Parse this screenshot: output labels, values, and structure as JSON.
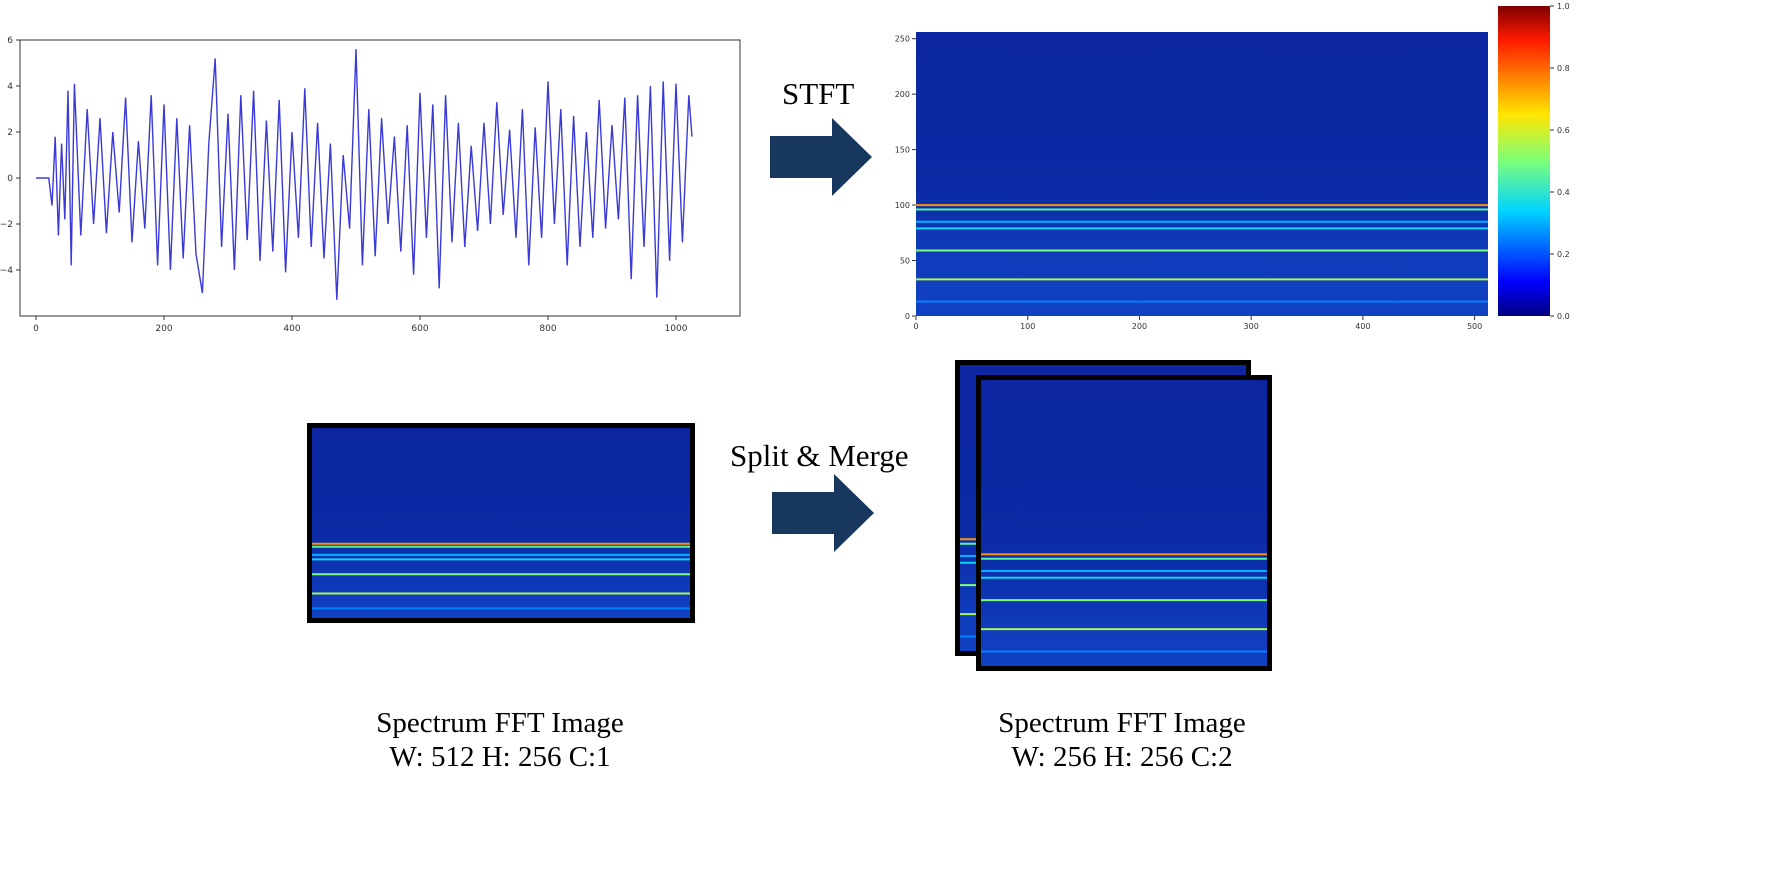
{
  "steps": {
    "stft_label": "STFT",
    "split_label": "Split & Merge"
  },
  "captions": {
    "left": {
      "title": "Spectrum FFT Image",
      "dims": "W: 512 H: 256 C:1"
    },
    "right": {
      "title": "Spectrum FFT Image",
      "dims": "W: 256 H: 256 C:2"
    }
  },
  "colors": {
    "signal": "#3a3ad8",
    "arrow": "#17375e",
    "spectrum_bg": "#0b2aa0",
    "frame": "#000000"
  },
  "chart_data": [
    {
      "type": "line",
      "title": "",
      "xlabel": "",
      "ylabel": "",
      "xlim": [
        -25,
        1100
      ],
      "ylim": [
        -6,
        6
      ],
      "x_ticks": [
        "0",
        "200",
        "400",
        "600",
        "800",
        "1000"
      ],
      "y_ticks": [
        "6",
        "4",
        "2",
        "0",
        "−2",
        "−4"
      ],
      "series": [
        {
          "x": [
            0,
            20,
            25,
            30,
            35,
            40,
            45,
            50,
            55,
            60,
            70,
            80,
            90,
            100,
            110,
            120,
            130,
            140,
            150,
            160,
            170,
            180,
            190,
            200,
            210,
            220,
            230,
            240,
            250,
            260,
            270,
            280,
            290,
            300,
            310,
            320,
            330,
            340,
            350,
            360,
            370,
            380,
            390,
            400,
            410,
            420,
            430,
            440,
            450,
            460,
            470,
            480,
            490,
            500,
            510,
            520,
            530,
            540,
            550,
            560,
            570,
            580,
            590,
            600,
            610,
            620,
            630,
            640,
            650,
            660,
            670,
            680,
            690,
            700,
            710,
            720,
            730,
            740,
            750,
            760,
            770,
            780,
            790,
            800,
            810,
            820,
            830,
            840,
            850,
            860,
            870,
            880,
            890,
            900,
            910,
            920,
            930,
            940,
            950,
            960,
            970,
            980,
            990,
            1000,
            1010,
            1020,
            1025
          ],
          "values": [
            0,
            0,
            -1.2,
            1.8,
            -2.5,
            1.5,
            -1.8,
            3.8,
            -3.8,
            4.1,
            -2.5,
            3.0,
            -2.0,
            2.6,
            -2.4,
            2.0,
            -1.5,
            3.5,
            -2.8,
            1.6,
            -2.2,
            3.6,
            -3.8,
            3.2,
            -4.0,
            2.6,
            -3.5,
            2.3,
            -3.3,
            -5.0,
            1.5,
            5.2,
            -3.0,
            2.8,
            -4.0,
            3.6,
            -2.7,
            3.8,
            -3.6,
            2.5,
            -3.2,
            3.4,
            -4.1,
            2.0,
            -2.6,
            3.9,
            -3.0,
            2.4,
            -3.5,
            1.5,
            -5.3,
            1.0,
            -2.2,
            5.6,
            -3.8,
            3.0,
            -3.4,
            2.6,
            -2.0,
            1.8,
            -3.2,
            2.3,
            -4.2,
            3.7,
            -2.6,
            3.2,
            -4.8,
            3.6,
            -2.8,
            2.4,
            -3.0,
            1.4,
            -2.3,
            2.4,
            -2.0,
            3.3,
            -1.6,
            2.1,
            -2.6,
            3.0,
            -3.8,
            2.2,
            -2.6,
            4.2,
            -2.0,
            3.0,
            -3.8,
            2.7,
            -3.0,
            2.0,
            -2.6,
            3.4,
            -2.2,
            2.3,
            -1.8,
            3.5,
            -4.4,
            3.6,
            -3.0,
            4.0,
            -5.2,
            4.2,
            -3.6,
            4.1,
            -2.8,
            3.6,
            1.8
          ]
        }
      ]
    },
    {
      "type": "heatmap",
      "title": "",
      "xlabel": "",
      "ylabel": "",
      "xlim": [
        0,
        512
      ],
      "ylim": [
        0,
        256
      ],
      "x_ticks": [
        "0",
        "100",
        "200",
        "300",
        "400",
        "500"
      ],
      "y_ticks": [
        "250",
        "200",
        "150",
        "100",
        "50",
        "0"
      ],
      "colorbar": {
        "range": [
          0,
          1
        ],
        "ticks": [
          "1.0",
          "0.8",
          "0.6",
          "0.4",
          "0.2",
          "0.0"
        ]
      },
      "bands": [
        {
          "y": 100,
          "intensity": 0.75
        },
        {
          "y": 96,
          "intensity": 0.45
        },
        {
          "y": 85,
          "intensity": 0.3
        },
        {
          "y": 79,
          "intensity": 0.35
        },
        {
          "y": 59,
          "intensity": 0.5
        },
        {
          "y": 33,
          "intensity": 0.55
        },
        {
          "y": 13,
          "intensity": 0.25
        }
      ]
    }
  ]
}
